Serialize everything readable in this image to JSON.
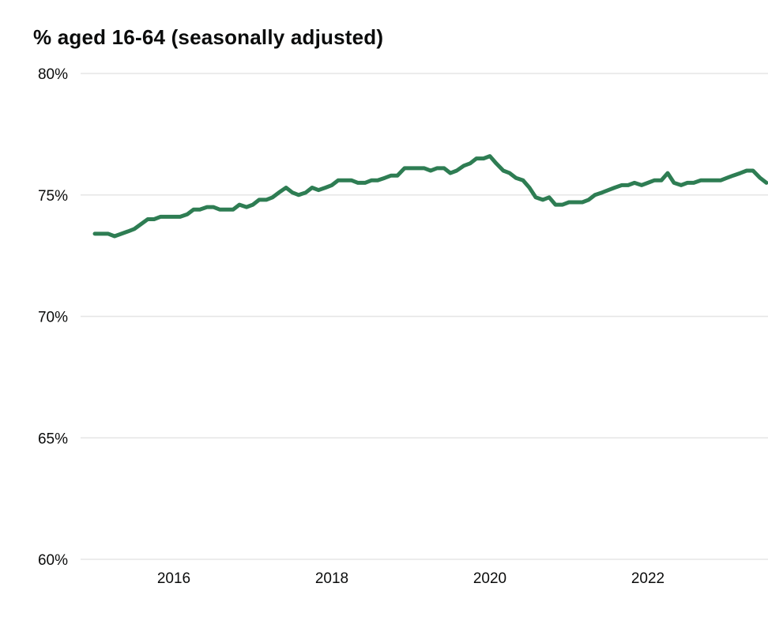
{
  "title": "% aged 16-64 (seasonally adjusted)",
  "chart_data": {
    "type": "line",
    "title": "% aged 16-64 (seasonally adjusted)",
    "xlabel": "",
    "ylabel": "",
    "ylim": [
      60,
      80
    ],
    "yticks": [
      60,
      65,
      70,
      75,
      80
    ],
    "ytick_labels": [
      "60%",
      "65%",
      "70%",
      "75%",
      "80%"
    ],
    "xticks": [
      2016,
      2018,
      2020,
      2022
    ],
    "xtick_labels": [
      "2016",
      "2018",
      "2020",
      "2022"
    ],
    "xlim": [
      2014.98,
      2023.53
    ],
    "grid": true,
    "legend": "none",
    "color": "#2e7d53",
    "series": [
      {
        "x": [
          2015.0,
          2015.17,
          2015.25,
          2015.42,
          2015.5,
          2015.67,
          2015.75,
          2015.83,
          2015.92,
          2016.0,
          2016.08,
          2016.17,
          2016.25,
          2016.33,
          2016.42,
          2016.5,
          2016.58,
          2016.67,
          2016.75,
          2016.83,
          2016.92,
          2017.0,
          2017.08,
          2017.17,
          2017.25,
          2017.33,
          2017.42,
          2017.5,
          2017.58,
          2017.67,
          2017.75,
          2017.83,
          2017.92,
          2018.0,
          2018.08,
          2018.17,
          2018.25,
          2018.33,
          2018.42,
          2018.5,
          2018.58,
          2018.67,
          2018.75,
          2018.83,
          2018.92,
          2019.0,
          2019.08,
          2019.17,
          2019.25,
          2019.33,
          2019.42,
          2019.5,
          2019.58,
          2019.67,
          2019.75,
          2019.83,
          2019.92,
          2020.0,
          2020.08,
          2020.17,
          2020.25,
          2020.33,
          2020.42,
          2020.5,
          2020.58,
          2020.67,
          2020.75,
          2020.83,
          2020.92,
          2021.0,
          2021.08,
          2021.17,
          2021.25,
          2021.33,
          2021.42,
          2021.5,
          2021.58,
          2021.67,
          2021.75,
          2021.83,
          2021.92,
          2022.0,
          2022.08,
          2022.17,
          2022.25,
          2022.33,
          2022.42,
          2022.5,
          2022.58,
          2022.67,
          2022.75,
          2022.83,
          2022.92,
          2023.0,
          2023.08,
          2023.17,
          2023.25,
          2023.33,
          2023.42,
          2023.5
        ],
        "values": [
          73.4,
          73.4,
          73.3,
          73.5,
          73.6,
          74.0,
          74.0,
          74.1,
          74.1,
          74.1,
          74.1,
          74.2,
          74.4,
          74.4,
          74.5,
          74.5,
          74.4,
          74.4,
          74.4,
          74.6,
          74.5,
          74.6,
          74.8,
          74.8,
          74.9,
          75.1,
          75.3,
          75.1,
          75.0,
          75.1,
          75.3,
          75.2,
          75.3,
          75.4,
          75.6,
          75.6,
          75.6,
          75.5,
          75.5,
          75.6,
          75.6,
          75.7,
          75.8,
          75.8,
          76.1,
          76.1,
          76.1,
          76.1,
          76.0,
          76.1,
          76.1,
          75.9,
          76.0,
          76.2,
          76.3,
          76.5,
          76.5,
          76.6,
          76.3,
          76.0,
          75.9,
          75.7,
          75.6,
          75.3,
          74.9,
          74.8,
          74.9,
          74.6,
          74.6,
          74.7,
          74.7,
          74.7,
          74.8,
          75.0,
          75.1,
          75.2,
          75.3,
          75.4,
          75.4,
          75.5,
          75.4,
          75.5,
          75.6,
          75.6,
          75.9,
          75.5,
          75.4,
          75.5,
          75.5,
          75.6,
          75.6,
          75.6,
          75.6,
          75.7,
          75.8,
          75.9,
          76.0,
          76.0,
          75.7,
          75.5
        ]
      }
    ]
  }
}
